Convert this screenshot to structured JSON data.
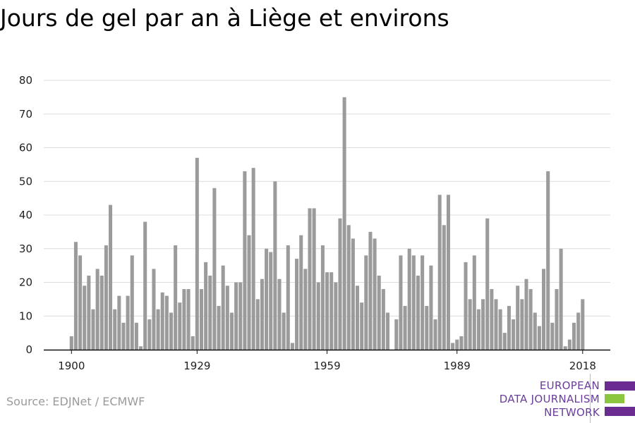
{
  "page": {
    "title": "Jours de gel par an à Liège et environs",
    "source": "Source: EDJNet / ECMWF"
  },
  "brand": {
    "lines": [
      "EUROPEAN",
      "DATA JOURNALISM",
      "NETWORK"
    ],
    "colors": {
      "purple": "#6a2c91",
      "green": "#8cc63f",
      "text": "#6a3d9a"
    }
  },
  "chart_data": {
    "type": "bar",
    "title": "Jours de gel par an à Liège et environs",
    "ylim": [
      0,
      80
    ],
    "yticks": [
      0,
      10,
      20,
      30,
      40,
      50,
      60,
      70,
      80
    ],
    "xticks": [
      1900,
      1929,
      1959,
      1989,
      2018
    ],
    "grid": true,
    "bar_color": "#9b9b9b",
    "x": [
      1900,
      1901,
      1902,
      1903,
      1904,
      1905,
      1906,
      1907,
      1908,
      1909,
      1910,
      1911,
      1912,
      1913,
      1914,
      1915,
      1916,
      1917,
      1918,
      1919,
      1920,
      1921,
      1922,
      1923,
      1924,
      1925,
      1926,
      1927,
      1928,
      1929,
      1930,
      1931,
      1932,
      1933,
      1934,
      1935,
      1936,
      1937,
      1938,
      1939,
      1940,
      1941,
      1942,
      1943,
      1944,
      1945,
      1946,
      1947,
      1948,
      1949,
      1950,
      1951,
      1952,
      1953,
      1954,
      1955,
      1956,
      1957,
      1958,
      1959,
      1960,
      1961,
      1962,
      1963,
      1964,
      1965,
      1966,
      1967,
      1968,
      1969,
      1970,
      1971,
      1972,
      1973,
      1974,
      1975,
      1976,
      1977,
      1978,
      1979,
      1980,
      1981,
      1982,
      1983,
      1984,
      1985,
      1986,
      1987,
      1988,
      1989,
      1990,
      1991,
      1992,
      1993,
      1994,
      1995,
      1996,
      1997,
      1998,
      1999,
      2000,
      2001,
      2002,
      2003,
      2004,
      2005,
      2006,
      2007,
      2008,
      2009,
      2010,
      2011,
      2012,
      2013,
      2014,
      2015,
      2016,
      2017,
      2018
    ],
    "values": [
      4,
      32,
      28,
      19,
      22,
      12,
      24,
      22,
      31,
      43,
      12,
      16,
      8,
      16,
      28,
      8,
      1,
      38,
      9,
      24,
      12,
      17,
      16,
      11,
      31,
      14,
      18,
      18,
      4,
      57,
      18,
      26,
      22,
      48,
      13,
      25,
      19,
      11,
      20,
      20,
      53,
      34,
      54,
      15,
      21,
      30,
      29,
      50,
      21,
      11,
      31,
      2,
      27,
      34,
      24,
      42,
      42,
      20,
      31,
      23,
      23,
      20,
      39,
      75,
      37,
      33,
      19,
      14,
      28,
      35,
      33,
      22,
      18,
      11,
      0,
      9,
      28,
      13,
      30,
      28,
      22,
      28,
      13,
      25,
      9,
      46,
      37,
      46,
      2,
      3,
      4,
      26,
      15,
      28,
      12,
      15,
      39,
      18,
      15,
      12,
      5,
      13,
      9,
      19,
      15,
      21,
      18,
      11,
      7,
      24,
      53,
      8,
      18,
      30,
      1,
      3,
      8,
      11,
      15
    ]
  }
}
